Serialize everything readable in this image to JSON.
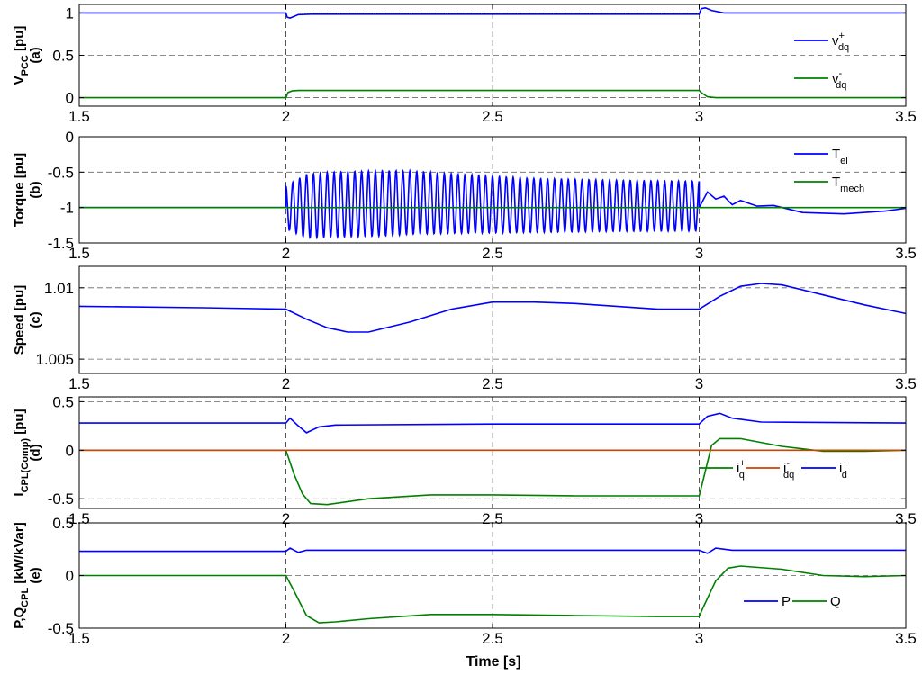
{
  "figure": {
    "x_axis_label": "Time [s]"
  },
  "chart_data": [
    {
      "id": "a",
      "type": "line",
      "ylabel_main": "V",
      "ylabel_sub": "PCC",
      "ylabel_unit": " [pu]",
      "panel_tag": "(a)",
      "xlim": [
        1.5,
        3.5
      ],
      "ylim": [
        -0.1,
        1.1
      ],
      "xticks": [
        "1.5",
        "2",
        "2.5",
        "3",
        "3.5"
      ],
      "yticks": [
        {
          "v": 0,
          "label": "0"
        },
        {
          "v": 0.5,
          "label": "0.5"
        },
        {
          "v": 1,
          "label": "1"
        }
      ],
      "grid": "dashed",
      "vlines": [
        2,
        3
      ],
      "legend_position": "right",
      "series": [
        {
          "name": "v",
          "name_sup": "+",
          "name_sub": "dq",
          "color": "#0000ff",
          "points": [
            [
              1.5,
              1.0
            ],
            [
              2.0,
              1.0
            ],
            [
              2.003,
              0.95
            ],
            [
              2.01,
              0.94
            ],
            [
              2.02,
              0.96
            ],
            [
              2.03,
              0.98
            ],
            [
              2.06,
              0.985
            ],
            [
              2.3,
              0.985
            ],
            [
              2.6,
              0.985
            ],
            [
              2.9,
              0.985
            ],
            [
              3.0,
              0.985
            ],
            [
              3.005,
              1.05
            ],
            [
              3.015,
              1.06
            ],
            [
              3.03,
              1.03
            ],
            [
              3.06,
              1.0
            ],
            [
              3.5,
              1.0
            ]
          ]
        },
        {
          "name": "v",
          "name_sup": "-",
          "name_sub": "dq",
          "color": "#008000",
          "points": [
            [
              1.5,
              0.0
            ],
            [
              2.0,
              0.0
            ],
            [
              2.005,
              0.06
            ],
            [
              2.015,
              0.08
            ],
            [
              2.03,
              0.085
            ],
            [
              2.5,
              0.085
            ],
            [
              3.0,
              0.085
            ],
            [
              3.005,
              0.06
            ],
            [
              3.02,
              0.01
            ],
            [
              3.04,
              0.0
            ],
            [
              3.5,
              0.0
            ]
          ]
        }
      ]
    },
    {
      "id": "b",
      "type": "line",
      "ylabel_main": "Torque [pu]",
      "ylabel_sub": "",
      "ylabel_unit": "",
      "panel_tag": "(b)",
      "xlim": [
        1.5,
        3.5
      ],
      "ylim": [
        -1.5,
        0
      ],
      "xticks": [
        "1.5",
        "2",
        "2.5",
        "3",
        "3.5"
      ],
      "yticks": [
        {
          "v": -1.5,
          "label": "-1.5"
        },
        {
          "v": -1,
          "label": "-1"
        },
        {
          "v": -0.5,
          "label": "-0.5"
        },
        {
          "v": 0,
          "label": "0"
        }
      ],
      "grid": "dashed",
      "vlines": [
        2,
        3
      ],
      "legend_position": "top-right",
      "series": [
        {
          "name": "T",
          "name_sup": "",
          "name_sub": "el",
          "color": "#0000ff",
          "oscillation": {
            "start": 2.0,
            "end": 3.0,
            "freq": 60,
            "base": -1.0,
            "amp": [
              [
                2.0,
                0.3
              ],
              [
                2.05,
                0.45
              ],
              [
                2.15,
                0.46
              ],
              [
                2.25,
                0.46
              ],
              [
                2.4,
                0.42
              ],
              [
                2.6,
                0.38
              ],
              [
                2.8,
                0.36
              ],
              [
                3.0,
                0.35
              ]
            ],
            "center": [
              [
                2.0,
                -1.0
              ],
              [
                2.1,
                -0.96
              ],
              [
                2.3,
                -0.93
              ],
              [
                2.6,
                -0.97
              ],
              [
                3.0,
                -0.98
              ]
            ]
          },
          "points": [
            [
              1.5,
              -1.0
            ],
            [
              2.0,
              -1.0
            ],
            [
              3.0,
              -1.0
            ],
            [
              3.02,
              -0.78
            ],
            [
              3.04,
              -0.88
            ],
            [
              3.06,
              -0.84
            ],
            [
              3.08,
              -0.96
            ],
            [
              3.1,
              -0.9
            ],
            [
              3.14,
              -0.98
            ],
            [
              3.18,
              -0.97
            ],
            [
              3.25,
              -1.07
            ],
            [
              3.35,
              -1.09
            ],
            [
              3.45,
              -1.05
            ],
            [
              3.5,
              -1.01
            ]
          ]
        },
        {
          "name": "T",
          "name_sup": "",
          "name_sub": "mech",
          "color": "#008000",
          "points": [
            [
              1.5,
              -1.0
            ],
            [
              3.5,
              -1.0
            ]
          ]
        }
      ]
    },
    {
      "id": "c",
      "type": "line",
      "ylabel_main": "Speed [pu]",
      "ylabel_sub": "",
      "ylabel_unit": "",
      "panel_tag": "(c)",
      "xlim": [
        1.5,
        3.5
      ],
      "ylim": [
        1.004,
        1.0115
      ],
      "xticks": [
        "1.5",
        "2",
        "2.5",
        "3",
        "3.5"
      ],
      "yticks": [
        {
          "v": 1.005,
          "label": "1.005"
        },
        {
          "v": 1.01,
          "label": "1.01"
        }
      ],
      "grid": "dashed",
      "vlines": [
        2,
        3
      ],
      "legend_position": "none",
      "series": [
        {
          "name": "",
          "color": "#0000ff",
          "points": [
            [
              1.5,
              1.0087
            ],
            [
              1.8,
              1.0086
            ],
            [
              2.0,
              1.0085
            ],
            [
              2.05,
              1.0078
            ],
            [
              2.1,
              1.0072
            ],
            [
              2.15,
              1.0069
            ],
            [
              2.2,
              1.0069
            ],
            [
              2.3,
              1.0076
            ],
            [
              2.4,
              1.0085
            ],
            [
              2.5,
              1.009
            ],
            [
              2.6,
              1.009
            ],
            [
              2.7,
              1.0089
            ],
            [
              2.8,
              1.0087
            ],
            [
              2.9,
              1.0085
            ],
            [
              3.0,
              1.0085
            ],
            [
              3.05,
              1.0094
            ],
            [
              3.1,
              1.0101
            ],
            [
              3.15,
              1.0103
            ],
            [
              3.2,
              1.0102
            ],
            [
              3.3,
              1.0095
            ],
            [
              3.4,
              1.0088
            ],
            [
              3.5,
              1.0082
            ]
          ]
        }
      ]
    },
    {
      "id": "d",
      "type": "line",
      "ylabel_main": "I",
      "ylabel_sub": "CPL(Comp)",
      "ylabel_unit": " [pu]",
      "panel_tag": "(d)",
      "xlim": [
        1.5,
        3.5
      ],
      "ylim": [
        -0.6,
        0.55
      ],
      "xticks": [
        "1.5",
        "2",
        "2.5",
        "3",
        "3.5"
      ],
      "yticks": [
        {
          "v": -0.5,
          "label": "-0.5"
        },
        {
          "v": 0,
          "label": "0"
        },
        {
          "v": 0.5,
          "label": "0.5"
        }
      ],
      "grid": "dashed",
      "vlines": [
        2,
        3
      ],
      "legend_position": "bottom-right",
      "series": [
        {
          "name": "i",
          "name_sup": "+",
          "name_sub": "q",
          "color": "#008000",
          "points": [
            [
              1.5,
              0.0
            ],
            [
              2.0,
              0.0
            ],
            [
              2.02,
              -0.25
            ],
            [
              2.04,
              -0.45
            ],
            [
              2.06,
              -0.55
            ],
            [
              2.1,
              -0.56
            ],
            [
              2.2,
              -0.5
            ],
            [
              2.35,
              -0.46
            ],
            [
              2.5,
              -0.46
            ],
            [
              2.7,
              -0.47
            ],
            [
              2.9,
              -0.47
            ],
            [
              3.0,
              -0.47
            ],
            [
              3.01,
              -0.3
            ],
            [
              3.03,
              0.05
            ],
            [
              3.05,
              0.12
            ],
            [
              3.1,
              0.12
            ],
            [
              3.2,
              0.04
            ],
            [
              3.3,
              -0.01
            ],
            [
              3.4,
              -0.01
            ],
            [
              3.5,
              0.0
            ]
          ]
        },
        {
          "name": "i",
          "name_sup": "-",
          "name_sub": "dq",
          "color": "#cc4400",
          "points": [
            [
              1.5,
              0.0
            ],
            [
              3.5,
              0.0
            ]
          ]
        },
        {
          "name": "i",
          "name_sup": "+",
          "name_sub": "d",
          "color": "#0000ff",
          "points": [
            [
              1.5,
              0.28
            ],
            [
              2.0,
              0.28
            ],
            [
              2.01,
              0.33
            ],
            [
              2.03,
              0.25
            ],
            [
              2.05,
              0.18
            ],
            [
              2.08,
              0.24
            ],
            [
              2.12,
              0.26
            ],
            [
              2.5,
              0.27
            ],
            [
              3.0,
              0.27
            ],
            [
              3.02,
              0.35
            ],
            [
              3.05,
              0.38
            ],
            [
              3.08,
              0.33
            ],
            [
              3.15,
              0.29
            ],
            [
              3.5,
              0.28
            ]
          ]
        }
      ]
    },
    {
      "id": "e",
      "type": "line",
      "ylabel_main": "P,Q",
      "ylabel_sub": "CPL",
      "ylabel_unit": " [kW/kVar]",
      "panel_tag": "(e)",
      "xlim": [
        1.5,
        3.5
      ],
      "ylim": [
        -0.5,
        0.5
      ],
      "xticks": [
        "1.5",
        "2",
        "2.5",
        "3",
        "3.5"
      ],
      "yticks": [
        {
          "v": -0.5,
          "label": "-0.5"
        },
        {
          "v": 0,
          "label": "0"
        },
        {
          "v": 0.5,
          "label": "0.5"
        }
      ],
      "grid": "dashed",
      "vlines": [
        2,
        3
      ],
      "legend_position": "bottom-right",
      "series": [
        {
          "name": "P",
          "color": "#0000ff",
          "points": [
            [
              1.5,
              0.23
            ],
            [
              2.0,
              0.23
            ],
            [
              2.01,
              0.26
            ],
            [
              2.03,
              0.22
            ],
            [
              2.05,
              0.24
            ],
            [
              2.5,
              0.24
            ],
            [
              3.0,
              0.24
            ],
            [
              3.02,
              0.21
            ],
            [
              3.04,
              0.26
            ],
            [
              3.08,
              0.24
            ],
            [
              3.5,
              0.24
            ]
          ]
        },
        {
          "name": "Q",
          "color": "#008000",
          "points": [
            [
              1.5,
              0.0
            ],
            [
              2.0,
              0.0
            ],
            [
              2.02,
              -0.15
            ],
            [
              2.05,
              -0.38
            ],
            [
              2.08,
              -0.45
            ],
            [
              2.12,
              -0.44
            ],
            [
              2.2,
              -0.41
            ],
            [
              2.35,
              -0.37
            ],
            [
              2.5,
              -0.37
            ],
            [
              2.7,
              -0.38
            ],
            [
              2.9,
              -0.39
            ],
            [
              3.0,
              -0.39
            ],
            [
              3.01,
              -0.3
            ],
            [
              3.04,
              -0.05
            ],
            [
              3.07,
              0.07
            ],
            [
              3.1,
              0.09
            ],
            [
              3.2,
              0.06
            ],
            [
              3.3,
              0.0
            ],
            [
              3.4,
              -0.01
            ],
            [
              3.5,
              0.0
            ]
          ]
        }
      ]
    }
  ]
}
